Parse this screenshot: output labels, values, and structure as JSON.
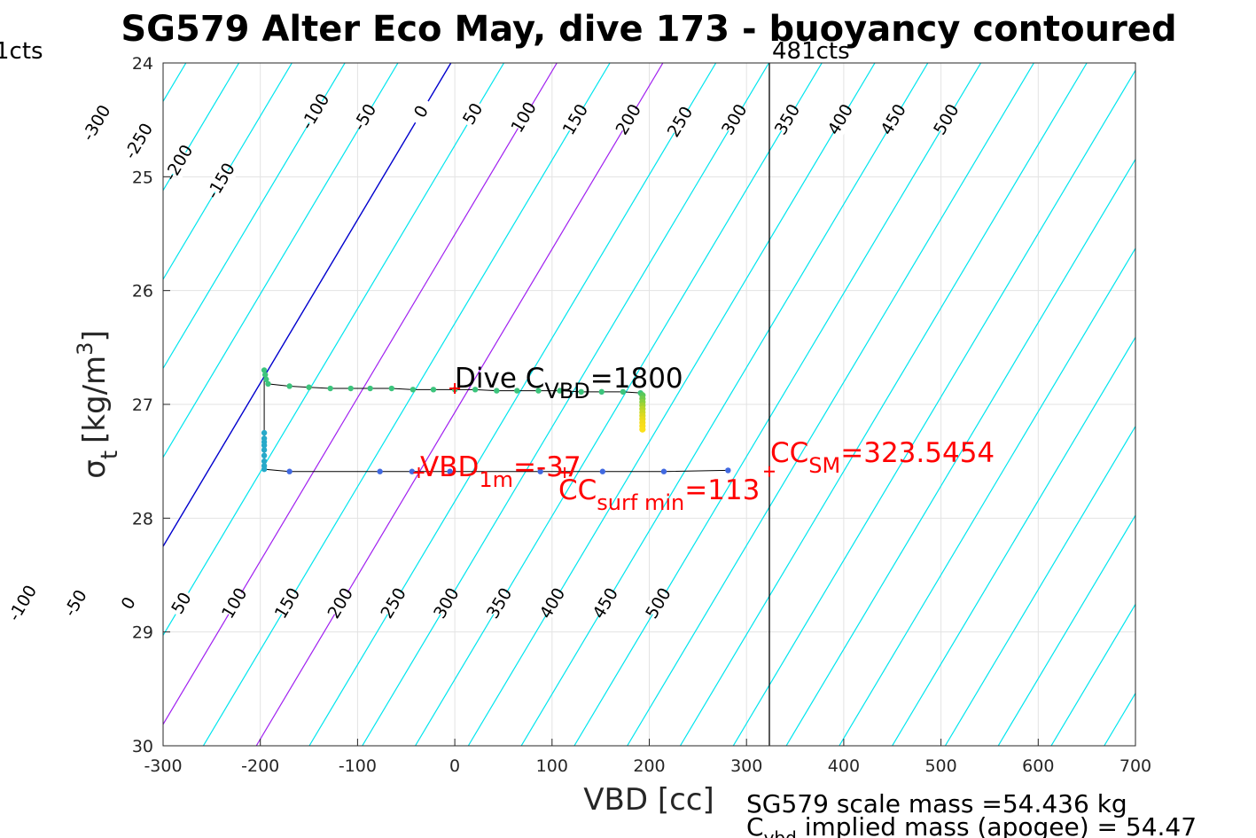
{
  "chart_data": {
    "type": "line",
    "title": "SG579 Alter Eco May, dive 173 - buoyancy contoured",
    "xlabel": "VBD [cc]",
    "ylabel_main": "σ",
    "ylabel_sub": "t",
    "ylabel_units": "[kg/m",
    "ylabel_units_sup": "3",
    "ylabel_units_close": "]",
    "xlim": [
      -300,
      700
    ],
    "ylim": [
      24,
      30
    ],
    "y_reversed": true,
    "grid": true,
    "xticks": [
      "-300",
      "-200",
      "-100",
      "0",
      "100",
      "200",
      "300",
      "400",
      "500",
      "600",
      "700"
    ],
    "yticks": [
      "24",
      "25",
      "26",
      "27",
      "28",
      "29",
      "30"
    ],
    "contours": {
      "levels_top": [
        "-300",
        "-250",
        "-200",
        "-150",
        "-100",
        "-50",
        "0",
        "50",
        "100",
        "150",
        "200",
        "250",
        "300",
        "350",
        "400",
        "450",
        "500"
      ],
      "levels_bottom": [
        "-100",
        "-50",
        "0",
        "50",
        "100",
        "150",
        "200",
        "250",
        "300",
        "350",
        "400",
        "450",
        "500"
      ],
      "colors": {
        "default": "#00e5ee",
        "zero": "#0000cd",
        "highlight": "#a020f0"
      }
    },
    "limit_line": {
      "vbd": 323.5,
      "label_right": "481cts",
      "label_left": "1cts"
    },
    "trajectory": {
      "descent_points": [
        [
          -196,
          26.7
        ],
        [
          -195,
          26.74
        ],
        [
          -194,
          26.78
        ],
        [
          -192,
          26.82
        ],
        [
          -170,
          26.84
        ],
        [
          -150,
          26.85
        ],
        [
          -128,
          26.86
        ],
        [
          -107,
          26.86
        ],
        [
          -87,
          26.86
        ],
        [
          -65,
          26.86
        ],
        [
          -43,
          26.87
        ],
        [
          -22,
          26.87
        ],
        [
          0,
          26.87
        ],
        [
          21,
          26.87
        ],
        [
          43,
          26.88
        ],
        [
          64,
          26.88
        ],
        [
          86,
          26.88
        ],
        [
          108,
          26.88
        ],
        [
          130,
          26.89
        ],
        [
          151,
          26.89
        ],
        [
          173,
          26.89
        ],
        [
          191,
          26.9
        ]
      ],
      "apogee_points": [
        [
          193,
          26.92
        ],
        [
          193,
          26.95
        ],
        [
          193,
          26.98
        ],
        [
          193,
          27.01
        ],
        [
          193,
          27.04
        ],
        [
          193,
          27.07
        ],
        [
          193,
          27.1
        ],
        [
          193,
          27.13
        ],
        [
          193,
          27.16
        ],
        [
          193,
          27.19
        ],
        [
          193,
          27.22
        ]
      ],
      "climb_points": [
        [
          -196,
          27.25
        ],
        [
          -196,
          27.3
        ],
        [
          -196,
          27.33
        ],
        [
          -196,
          27.36
        ],
        [
          -196,
          27.4
        ],
        [
          -196,
          27.45
        ],
        [
          -196,
          27.5
        ],
        [
          -196,
          27.54
        ],
        [
          -196,
          27.57
        ],
        [
          -170,
          27.59
        ],
        [
          -77,
          27.59
        ],
        [
          -44,
          27.59
        ],
        [
          -5,
          27.59
        ],
        [
          88,
          27.59
        ],
        [
          152,
          27.59
        ],
        [
          215,
          27.59
        ],
        [
          281,
          27.58
        ]
      ]
    },
    "annotations": {
      "dive": {
        "prefix": "Dive C",
        "sub": "VBD",
        "suffix": "=1800"
      },
      "vbd1m": {
        "prefix": "VBD",
        "sub": "1m",
        "suffix": "=-37"
      },
      "ccsurf": {
        "prefix": "CC",
        "sub": "surf min",
        "suffix": "=113"
      },
      "ccsm": {
        "prefix": "CC",
        "sub": "SM",
        "suffix": "=323.5454"
      }
    },
    "markers": [
      [
        0,
        26.86
      ],
      [
        -37,
        27.6
      ],
      [
        113,
        27.6
      ],
      [
        323.5,
        27.59
      ]
    ]
  },
  "footer": {
    "scale_mass": "SG579 scale mass =54.436 kg",
    "implied_prefix": "C",
    "implied_sub": "vbd",
    "implied_suffix": " implied mass (apogee) = 54.47"
  },
  "colors": {
    "annotation_red": "#ff0000",
    "axis": "#262626",
    "grid": "#e0e0e0"
  }
}
